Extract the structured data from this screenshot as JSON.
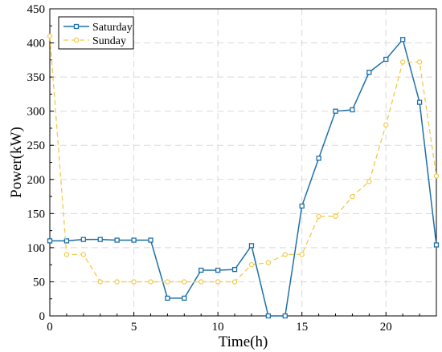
{
  "chart_data": {
    "type": "line",
    "xlabel": "Time(h)",
    "ylabel": "Power(kW)",
    "xlim": [
      0,
      23
    ],
    "ylim": [
      0,
      450
    ],
    "xticks": [
      0,
      5,
      10,
      15,
      20
    ],
    "yticks": [
      0,
      50,
      100,
      150,
      200,
      250,
      300,
      350,
      400,
      450
    ],
    "grid": true,
    "legend_position": "top-left",
    "series": [
      {
        "name": "Saturday",
        "color": "#1f6fa8",
        "marker": "square",
        "style": "solid",
        "x": [
          0,
          1,
          2,
          3,
          4,
          5,
          6,
          7,
          8,
          9,
          10,
          11,
          12,
          13,
          14,
          15,
          16,
          17,
          18,
          19,
          20,
          21,
          22,
          23
        ],
        "values": [
          110,
          110,
          112,
          112,
          111,
          111,
          111,
          26,
          26,
          67,
          67,
          68,
          103,
          0,
          0,
          161,
          231,
          300,
          302,
          357,
          376,
          405,
          313,
          104
        ]
      },
      {
        "name": "Sunday",
        "color": "#f2c94c",
        "marker": "circle",
        "style": "dashed",
        "x": [
          0,
          1,
          2,
          3,
          4,
          5,
          6,
          7,
          8,
          9,
          10,
          11,
          12,
          13,
          14,
          15,
          16,
          17,
          18,
          19,
          20,
          21,
          22,
          23
        ],
        "values": [
          410,
          90,
          90,
          50,
          50,
          50,
          50,
          50,
          50,
          50,
          50,
          50,
          75,
          78,
          90,
          90,
          146,
          146,
          175,
          197,
          280,
          372,
          372,
          205
        ]
      }
    ]
  }
}
